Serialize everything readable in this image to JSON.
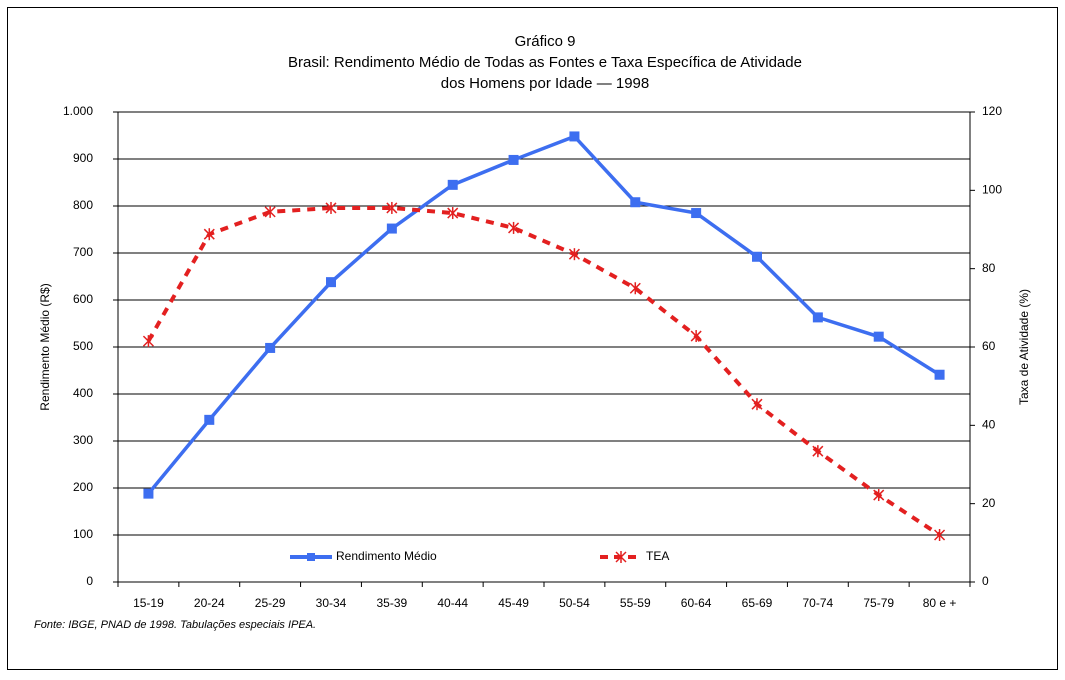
{
  "chart_data": {
    "type": "line",
    "title": [
      "Gráfico 9",
      "Brasil: Rendimento Médio de Todas as Fontes e Taxa Específica de Atividade",
      "dos Homens por Idade — 1998"
    ],
    "categories": [
      "15-19",
      "20-24",
      "25-29",
      "30-34",
      "35-39",
      "40-44",
      "45-49",
      "50-54",
      "55-59",
      "60-64",
      "65-69",
      "70-74",
      "75-79",
      "80 e +"
    ],
    "series": [
      {
        "name": "Rendimento Médio",
        "color": "#3d6ef0",
        "values": [
          188,
          345,
          498,
          638,
          752,
          845,
          898,
          948,
          808,
          785,
          692,
          563,
          522,
          441
        ]
      },
      {
        "name": "TEA",
        "color": "#e32020",
        "axis": "y2",
        "values": [
          61.5,
          88.8,
          94.5,
          95.5,
          95.5,
          94.2,
          90.4,
          83.7,
          75,
          62.8,
          45.4,
          33.4,
          22.2,
          12
        ]
      }
    ],
    "ylabel": "Rendimento Médio (R$)",
    "y2label": "Taxa de Atividade (%)",
    "ylim": [
      0,
      1000
    ],
    "yticks": [
      0,
      100,
      200,
      300,
      400,
      500,
      600,
      700,
      800,
      900,
      {
        "value": 1000,
        "label": "1.000"
      }
    ],
    "y2lim": [
      0,
      120
    ],
    "y2ticks": [
      0,
      20,
      40,
      60,
      80,
      100,
      120
    ],
    "grid": true,
    "legend": "bottom",
    "source": "Fonte: IBGE, PNAD de 1998. Tabulações especiais IPEA."
  }
}
